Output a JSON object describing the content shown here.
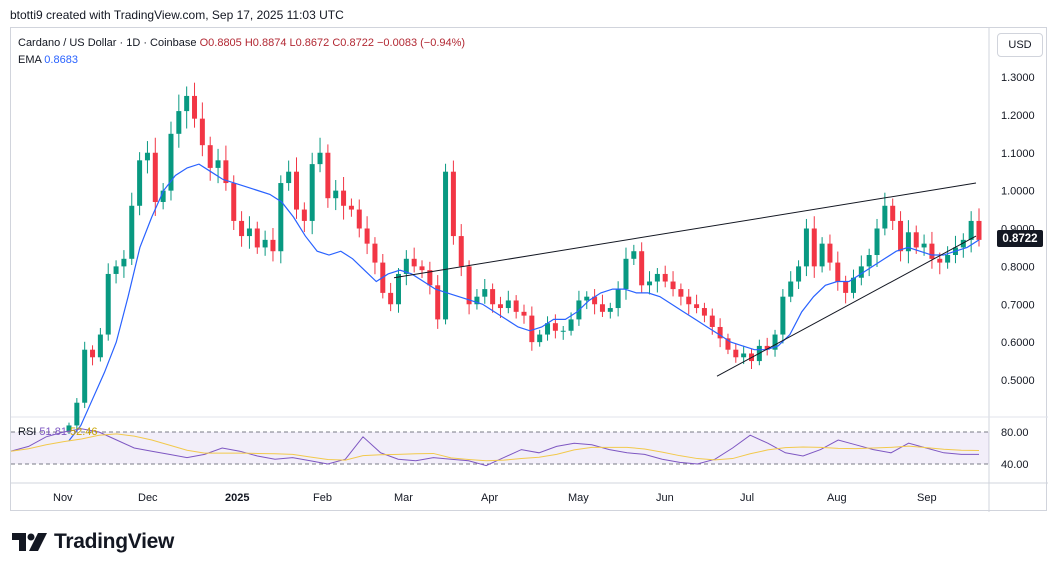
{
  "credit": "btotti9 created with TradingView.com, Sep 17, 2025 11:03 UTC",
  "legend": {
    "symbol": "Cardano / US Dollar · 1D · Coinbase",
    "open": "O0.8805",
    "high": "H0.8874",
    "low": "L0.8672",
    "close": "C0.8722",
    "change": "−0.0083 (−0.94%)",
    "ema_label": "EMA",
    "ema_value": "0.8683",
    "rsi_label": "RSI",
    "rsi_value": "51.81",
    "rsi_ma_value": "52.46"
  },
  "currency": "USD",
  "last_price": "0.8722",
  "logo_text": "TradingView",
  "colors": {
    "up": "#089981",
    "down": "#f23645",
    "ema": "#2962ff",
    "rsi": "#7e57c2",
    "rsi_ma": "#f2c94c"
  },
  "chart_data": {
    "type": "candlestick",
    "symbol": "Cardano / US Dollar",
    "interval": "1D",
    "exchange": "Coinbase",
    "price_axis": [
      "1.3000",
      "1.2000",
      "1.1000",
      "1.0000",
      "0.9000",
      "0.8000",
      "0.7000",
      "0.6000",
      "0.5000"
    ],
    "price_ticks": [
      1.3,
      1.2,
      1.1,
      1.0,
      0.9,
      0.8,
      0.7,
      0.6,
      0.5
    ],
    "time_axis": [
      "Nov",
      "Dec",
      "2025",
      "Feb",
      "Mar",
      "Apr",
      "May",
      "Jun",
      "Jul",
      "Aug",
      "Sep"
    ],
    "rsi_axis": [
      "80.00",
      "40.00"
    ],
    "ohlc_closes": [
      0.38,
      0.44,
      0.58,
      0.56,
      0.62,
      0.78,
      0.8,
      0.82,
      0.96,
      1.08,
      1.1,
      0.97,
      1.0,
      1.15,
      1.21,
      1.25,
      1.19,
      1.12,
      1.06,
      1.08,
      1.02,
      0.92,
      0.88,
      0.9,
      0.85,
      0.87,
      0.84,
      1.02,
      1.05,
      0.95,
      0.92,
      1.07,
      1.1,
      0.98,
      1.0,
      0.96,
      0.95,
      0.9,
      0.86,
      0.81,
      0.73,
      0.7,
      0.78,
      0.82,
      0.8,
      0.79,
      0.75,
      0.66,
      1.05,
      0.88,
      0.8,
      0.7,
      0.72,
      0.74,
      0.7,
      0.69,
      0.71,
      0.68,
      0.67,
      0.6,
      0.62,
      0.65,
      0.63,
      0.63,
      0.66,
      0.71,
      0.72,
      0.7,
      0.68,
      0.69,
      0.74,
      0.82,
      0.84,
      0.75,
      0.76,
      0.78,
      0.76,
      0.74,
      0.72,
      0.7,
      0.69,
      0.67,
      0.64,
      0.61,
      0.58,
      0.56,
      0.57,
      0.55,
      0.59,
      0.58,
      0.62,
      0.72,
      0.76,
      0.8,
      0.9,
      0.8,
      0.86,
      0.81,
      0.76,
      0.73,
      0.77,
      0.8,
      0.83,
      0.9,
      0.96,
      0.92,
      0.84,
      0.89,
      0.85,
      0.86,
      0.82,
      0.81,
      0.83,
      0.85,
      0.87,
      0.92,
      0.87
    ],
    "ema_values": [
      0.34,
      0.38,
      0.45,
      0.52,
      0.6,
      0.72,
      0.85,
      0.93,
      1.0,
      1.04,
      1.06,
      1.07,
      1.05,
      1.03,
      1.02,
      1.01,
      1.0,
      0.99,
      0.97,
      0.93,
      0.88,
      0.84,
      0.83,
      0.84,
      0.82,
      0.79,
      0.76,
      0.78,
      0.79,
      0.78,
      0.76,
      0.74,
      0.73,
      0.72,
      0.71,
      0.7,
      0.68,
      0.66,
      0.64,
      0.63,
      0.64,
      0.66,
      0.66,
      0.68,
      0.71,
      0.73,
      0.74,
      0.74,
      0.73,
      0.73,
      0.72,
      0.7,
      0.68,
      0.66,
      0.64,
      0.62,
      0.6,
      0.59,
      0.58,
      0.58,
      0.59,
      0.62,
      0.68,
      0.72,
      0.75,
      0.76,
      0.76,
      0.78,
      0.8,
      0.82,
      0.84,
      0.85,
      0.84,
      0.83,
      0.83,
      0.84,
      0.85,
      0.87
    ],
    "rsi_levels": [
      80,
      40
    ],
    "rsi_values": [
      56,
      62,
      74,
      80,
      84,
      80,
      70,
      60,
      56,
      52,
      48,
      52,
      60,
      56,
      50,
      46,
      48,
      44,
      40,
      46,
      74,
      54,
      46,
      44,
      48,
      46,
      44,
      38,
      48,
      58,
      54,
      62,
      66,
      64,
      58,
      54,
      52,
      46,
      42,
      40,
      46,
      60,
      76,
      66,
      54,
      50,
      58,
      70,
      64,
      58,
      54,
      66,
      60,
      54,
      52,
      52
    ],
    "trendlines": [
      {
        "name": "upper",
        "from": {
          "date": "Mar",
          "price": 0.77
        },
        "to": {
          "date": "Sep",
          "price": 1.02
        }
      },
      {
        "name": "lower",
        "from": {
          "date": "Jun",
          "price": 0.51
        },
        "to": {
          "date": "Sep",
          "price": 0.88
        }
      }
    ]
  }
}
